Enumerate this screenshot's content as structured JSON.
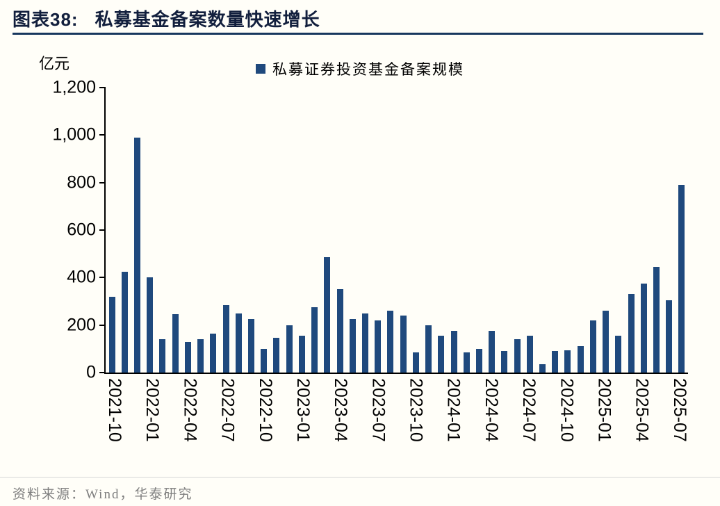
{
  "header": {
    "label": "图表38:",
    "title": "私募基金备案数量快速增长"
  },
  "footer": {
    "source": "资料来源：Wind，华泰研究"
  },
  "chart_data": {
    "type": "bar",
    "title": "私募基金备案数量快速增长",
    "unit": "亿元",
    "legend": "私募证券投资基金备案规模",
    "legend_position": "top-center",
    "grid": false,
    "bar_color": "#1F497D",
    "xlabel": "",
    "ylabel": "亿元",
    "ylim": [
      0,
      1200
    ],
    "ytick_labels": [
      "1,200",
      "1,000",
      "800",
      "600",
      "400",
      "200",
      "0"
    ],
    "ytick_values": [
      1200,
      1000,
      800,
      600,
      400,
      200,
      0
    ],
    "x_label_interval": 3,
    "x": [
      "2021-10",
      "2021-11",
      "2021-12",
      "2022-01",
      "2022-02",
      "2022-03",
      "2022-04",
      "2022-05",
      "2022-06",
      "2022-07",
      "2022-08",
      "2022-09",
      "2022-10",
      "2022-11",
      "2022-12",
      "2023-01",
      "2023-02",
      "2023-03",
      "2023-04",
      "2023-05",
      "2023-06",
      "2023-07",
      "2023-08",
      "2023-09",
      "2023-10",
      "2023-11",
      "2023-12",
      "2024-01",
      "2024-02",
      "2024-03",
      "2024-04",
      "2024-05",
      "2024-06",
      "2024-07",
      "2024-08",
      "2024-09",
      "2024-10",
      "2024-11",
      "2024-12",
      "2025-01",
      "2025-02",
      "2025-03",
      "2025-04",
      "2025-05",
      "2025-06",
      "2025-07"
    ],
    "values": [
      320,
      425,
      990,
      400,
      140,
      245,
      130,
      140,
      165,
      285,
      250,
      225,
      100,
      145,
      200,
      155,
      275,
      485,
      350,
      225,
      250,
      220,
      260,
      240,
      85,
      200,
      155,
      175,
      85,
      100,
      175,
      90,
      140,
      155,
      35,
      90,
      95,
      110,
      220,
      260,
      155,
      330,
      375,
      445,
      305,
      790
    ]
  }
}
